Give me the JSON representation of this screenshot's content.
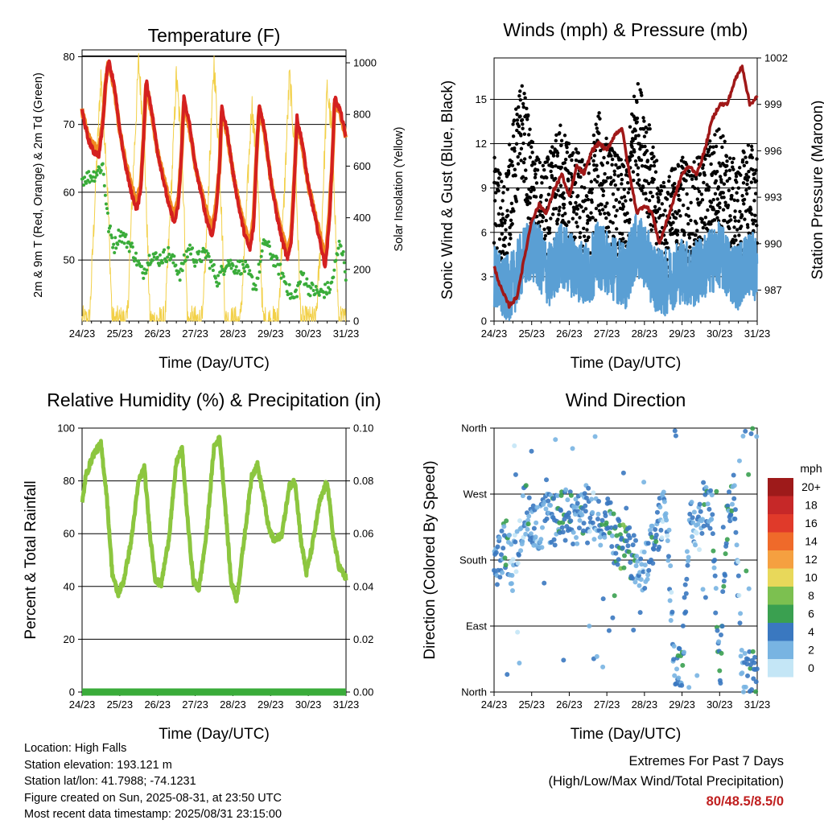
{
  "chart_data": [
    {
      "type": "line",
      "title": "Temperature (F)",
      "xlabel": "Time (Day/UTC)",
      "ylabel": "2m & 9m T (Red, Orange) & 2m Td (Green)",
      "ylabel_right": "Solar Insolation (Yellow)",
      "x_ticks": [
        "24/23",
        "25/23",
        "26/23",
        "27/23",
        "28/23",
        "29/23",
        "30/23",
        "31/23"
      ],
      "y_ticks": [
        50,
        60,
        70,
        80
      ],
      "y2_ticks": [
        0,
        200,
        400,
        600,
        800,
        1000
      ],
      "ylim": [
        41,
        81
      ],
      "y2lim": [
        0,
        1050
      ],
      "grid": true,
      "series": [
        {
          "name": "2m T",
          "color": "#d42020",
          "x": [
            0,
            0.15,
            0.3,
            0.45,
            0.55,
            0.62,
            0.7,
            0.85,
            1.0,
            1.15,
            1.3,
            1.45,
            1.55,
            1.63,
            1.7,
            1.85,
            2.0,
            2.15,
            2.3,
            2.45,
            2.55,
            2.63,
            2.7,
            2.85,
            3.0,
            3.15,
            3.3,
            3.45,
            3.55,
            3.65,
            3.7,
            3.85,
            4.0,
            4.15,
            4.3,
            4.45,
            4.55,
            4.63,
            4.7,
            4.85,
            5.0,
            5.15,
            5.3,
            5.45,
            5.55,
            5.63,
            5.7,
            5.85,
            6.0,
            6.15,
            6.3,
            6.45,
            6.55,
            6.63,
            6.7,
            6.85,
            7.0
          ],
          "values": [
            72,
            68,
            66,
            65.5,
            70,
            76,
            79.5,
            76,
            69,
            64,
            60,
            57.5,
            60,
            68,
            76.5,
            72,
            66,
            62,
            58,
            55.5,
            58,
            65,
            74,
            70,
            64,
            60,
            56,
            53.5,
            57,
            64,
            72.5,
            69,
            63,
            58,
            54,
            51.5,
            55,
            66,
            73,
            69,
            62,
            57,
            53,
            50,
            53,
            62,
            71,
            67,
            61,
            57,
            53,
            49,
            55,
            64,
            74,
            72,
            68
          ]
        },
        {
          "name": "9m T",
          "color": "#f08a20",
          "x": [
            0,
            0.15,
            0.3,
            0.45,
            0.55,
            0.62,
            0.7,
            0.85,
            1.0,
            1.15,
            1.3,
            1.45,
            1.55,
            1.63,
            1.7,
            1.85,
            2.0,
            2.15,
            2.3,
            2.45,
            2.55,
            2.63,
            2.7,
            2.85,
            3.0,
            3.15,
            3.3,
            3.45,
            3.55,
            3.65,
            3.7,
            3.85,
            4.0,
            4.15,
            4.3,
            4.45,
            4.55,
            4.63,
            4.7,
            4.85,
            5.0,
            5.15,
            5.3,
            5.45,
            5.55,
            5.63,
            5.7,
            5.85,
            6.0,
            6.15,
            6.3,
            6.45,
            6.55,
            6.63,
            6.7,
            6.85,
            7.0
          ],
          "values": [
            72,
            68.5,
            67,
            66.5,
            70.5,
            76,
            79,
            75.5,
            69,
            64.5,
            61,
            58.5,
            61,
            68,
            76,
            71.5,
            66,
            62.5,
            59,
            56.5,
            59,
            65,
            73.5,
            69.5,
            64,
            60.5,
            57,
            54.5,
            58,
            64,
            72,
            68.5,
            63,
            58.5,
            55,
            52.5,
            56,
            66,
            72.5,
            68.5,
            62,
            57.5,
            54,
            51,
            54,
            62,
            70.5,
            66.5,
            61,
            57.5,
            54,
            50,
            56,
            64,
            73.5,
            71.5,
            68
          ]
        },
        {
          "name": "2m Td",
          "color": "#3aac3a",
          "x": [
            0,
            0.3,
            0.55,
            0.7,
            0.85,
            1.0,
            1.3,
            1.6,
            1.85,
            2.0,
            2.3,
            2.6,
            2.85,
            3.0,
            3.3,
            3.6,
            3.85,
            4.0,
            4.3,
            4.6,
            4.85,
            5.0,
            5.3,
            5.6,
            5.85,
            6.0,
            6.3,
            6.6,
            6.85,
            7.0
          ],
          "values": [
            62,
            62.5,
            64,
            55,
            52,
            54,
            52,
            48,
            51,
            50,
            51,
            48,
            52,
            50,
            51,
            47,
            50,
            49,
            49,
            46,
            53,
            51,
            48,
            44,
            48,
            46,
            45,
            46,
            53,
            48
          ]
        },
        {
          "name": "Solar Insolation",
          "color": "#f2d048",
          "axis": "right",
          "x": [
            0.2,
            0.35,
            0.5,
            0.65,
            0.8,
            1.2,
            1.35,
            1.5,
            1.65,
            1.8,
            2.2,
            2.35,
            2.5,
            2.65,
            2.8,
            3.2,
            3.35,
            3.5,
            3.65,
            3.8,
            4.2,
            4.35,
            4.5,
            4.65,
            4.8,
            5.2,
            5.35,
            5.5,
            5.65,
            5.8,
            6.2,
            6.35,
            6.5,
            6.65,
            6.8
          ],
          "values": [
            0,
            500,
            950,
            600,
            0,
            0,
            550,
            1000,
            700,
            0,
            0,
            450,
            950,
            650,
            0,
            0,
            500,
            1000,
            600,
            0,
            0,
            400,
            850,
            550,
            0,
            0,
            450,
            950,
            650,
            0,
            0,
            350,
            900,
            700,
            0
          ]
        }
      ]
    },
    {
      "type": "scatter",
      "title": "Winds (mph) & Pressure (mb)",
      "xlabel": "Time (Day/UTC)",
      "ylabel": "Sonic Wind & Gust (Blue, Black)",
      "ylabel_right": "Station Pressure (Maroon)",
      "x_ticks": [
        "24/23",
        "25/23",
        "26/23",
        "27/23",
        "28/23",
        "29/23",
        "30/23",
        "31/23"
      ],
      "y_ticks": [
        0,
        3,
        6,
        9,
        12,
        15
      ],
      "y2_ticks": [
        987,
        990,
        993,
        996,
        999,
        1002
      ],
      "ylim": [
        0,
        17.8
      ],
      "y2lim": [
        985,
        1002
      ],
      "grid": true,
      "series": [
        {
          "name": "Station Pressure",
          "color": "#a01818",
          "axis": "right",
          "x": [
            0,
            0.2,
            0.4,
            0.6,
            0.8,
            1.0,
            1.2,
            1.4,
            1.6,
            1.8,
            2.0,
            2.2,
            2.4,
            2.6,
            2.8,
            3.0,
            3.2,
            3.4,
            3.6,
            3.8,
            4.0,
            4.2,
            4.4,
            4.6,
            4.8,
            5.0,
            5.2,
            5.4,
            5.6,
            5.8,
            6.0,
            6.2,
            6.4,
            6.6,
            6.8,
            7.0
          ],
          "values": [
            988.5,
            987,
            986,
            986.5,
            989,
            991.5,
            992.5,
            992,
            993.5,
            994.5,
            993,
            995,
            994.5,
            996,
            996.5,
            996,
            997,
            997.5,
            994.5,
            992,
            992.5,
            992,
            990,
            991.5,
            993,
            994.5,
            995,
            994.5,
            996,
            998,
            999,
            999,
            1000.5,
            1001.5,
            999,
            999.5
          ]
        },
        {
          "name": "Sonic Wind",
          "color": "#5a9fd4",
          "x": [
            0,
            0.25,
            0.5,
            0.75,
            1.0,
            1.25,
            1.5,
            1.75,
            2.0,
            2.25,
            2.5,
            2.75,
            3.0,
            3.25,
            3.5,
            3.75,
            4.0,
            4.25,
            4.5,
            4.75,
            5.0,
            5.25,
            5.5,
            5.75,
            6.0,
            6.25,
            6.5,
            6.75,
            7.0
          ],
          "values": [
            3,
            2,
            2.5,
            4,
            5,
            4,
            3,
            4.5,
            4,
            3.5,
            3,
            4.5,
            4,
            3.5,
            3,
            5,
            4.5,
            3,
            2.5,
            3,
            3.5,
            3,
            3.5,
            4,
            4.5,
            3.5,
            3,
            4,
            3.5
          ]
        },
        {
          "name": "Gust",
          "color": "#000000",
          "x": [
            0,
            0.25,
            0.5,
            0.75,
            1.0,
            1.25,
            1.5,
            1.75,
            2.0,
            2.25,
            2.5,
            2.75,
            3.0,
            3.25,
            3.5,
            3.75,
            4.0,
            4.25,
            4.5,
            4.75,
            5.0,
            5.25,
            5.5,
            5.75,
            6.0,
            6.25,
            6.5,
            6.75,
            7.0
          ],
          "values": [
            8,
            6,
            10,
            13,
            9,
            7,
            8,
            10,
            9,
            8,
            7,
            11,
            9,
            8,
            7,
            13,
            12,
            8,
            6,
            7,
            8,
            7,
            8,
            9,
            10,
            8,
            7,
            9,
            8
          ]
        }
      ]
    },
    {
      "type": "line",
      "title": "Relative Humidity (%) & Precipitation (in)",
      "xlabel": "Time (Day/UTC)",
      "ylabel": "Percent & Total Rainfall",
      "x_ticks": [
        "24/23",
        "25/23",
        "26/23",
        "27/23",
        "28/23",
        "29/23",
        "30/23",
        "31/23"
      ],
      "y_ticks": [
        0,
        20,
        40,
        60,
        80,
        100
      ],
      "y2_ticks": [
        "0.00",
        "0.02",
        "0.04",
        "0.06",
        "0.08",
        "0.10"
      ],
      "ylim": [
        0,
        100
      ],
      "y2lim": [
        0,
        0.1
      ],
      "grid": true,
      "series": [
        {
          "name": "Relative Humidity",
          "color": "#8cc63f",
          "x": [
            0,
            0.1,
            0.3,
            0.5,
            0.65,
            0.8,
            0.95,
            1.1,
            1.3,
            1.5,
            1.65,
            1.8,
            1.95,
            2.1,
            2.3,
            2.5,
            2.65,
            2.8,
            2.95,
            3.1,
            3.3,
            3.5,
            3.65,
            3.8,
            3.95,
            4.1,
            4.3,
            4.5,
            4.65,
            4.8,
            4.95,
            5.1,
            5.3,
            5.5,
            5.65,
            5.8,
            5.95,
            6.1,
            6.3,
            6.5,
            6.65,
            6.8,
            7.0
          ],
          "values": [
            71,
            82,
            90,
            94,
            75,
            45,
            37,
            42,
            57,
            80,
            85,
            60,
            42,
            41,
            58,
            87,
            92,
            65,
            42,
            39,
            60,
            93,
            96,
            70,
            42,
            35,
            58,
            82,
            86,
            75,
            62,
            57,
            60,
            78,
            80,
            58,
            45,
            55,
            72,
            80,
            60,
            48,
            43
          ]
        },
        {
          "name": "Total Precipitation",
          "color": "#3aac3a",
          "axis": "right",
          "x": [
            0,
            7
          ],
          "values": [
            0,
            0
          ]
        }
      ]
    },
    {
      "type": "scatter",
      "title": "Wind Direction",
      "xlabel": "Time (Day/UTC)",
      "ylabel": "Direction (Colored By Speed)",
      "x_ticks": [
        "24/23",
        "25/23",
        "26/23",
        "27/23",
        "28/23",
        "29/23",
        "30/23",
        "31/23"
      ],
      "y_ticks": [
        "North",
        "East",
        "South",
        "West",
        "North"
      ],
      "legend": {
        "title": "mph",
        "labels": [
          "20+",
          "18",
          "16",
          "14",
          "12",
          "10",
          "8",
          "6",
          "4",
          "2",
          "0"
        ],
        "colors": [
          "#9e1a1a",
          "#c62828",
          "#e03a2a",
          "#ef6a2a",
          "#f5a040",
          "#e8d85a",
          "#7cc050",
          "#3aa050",
          "#3a78c0",
          "#78b4e2",
          "#c4e6f6"
        ]
      },
      "points_note": "",
      "x": [
        0.1,
        0.3,
        0.5,
        0.8,
        1.0,
        1.2,
        1.4,
        1.6,
        1.8,
        2.0,
        2.2,
        2.4,
        2.6,
        2.8,
        3.0,
        3.2,
        3.4,
        3.6,
        3.8,
        4.0,
        4.2,
        4.4,
        4.6,
        4.8,
        5.0,
        5.2,
        5.4,
        5.6,
        5.8,
        6.0,
        6.2,
        6.4,
        6.6,
        6.8,
        7.0
      ],
      "values": [
        180,
        200,
        170,
        250,
        240,
        220,
        240,
        230,
        250,
        240,
        230,
        250,
        240,
        230,
        250,
        215,
        200,
        190,
        180,
        170,
        205,
        230,
        250,
        20,
        30,
        240,
        220,
        250,
        240,
        10,
        240,
        250,
        20,
        30,
        10
      ],
      "speeds": [
        3,
        4,
        2,
        3,
        4,
        2,
        3,
        4,
        5,
        4,
        3,
        4,
        2,
        3,
        5,
        4,
        6,
        5,
        3,
        2,
        4,
        3,
        2,
        3,
        4,
        3,
        2,
        4,
        3,
        5,
        4,
        3,
        2,
        5,
        4
      ]
    }
  ],
  "footer": {
    "location": "Location: High Falls",
    "elevation": "Station elevation: 193.121 m",
    "latlon": "Station lat/lon: 41.7988; -74.1231",
    "created": "Figure created on Sun, 2025-08-31, at 23:50 UTC",
    "recent": "Most recent data timestamp: 2025/08/31 23:15:00",
    "extremes_title": "Extremes For Past 7 Days",
    "extremes_sub": "(High/Low/Max Wind/Total Precipitation)",
    "extremes_values": "80/48.5/8.5/0"
  }
}
